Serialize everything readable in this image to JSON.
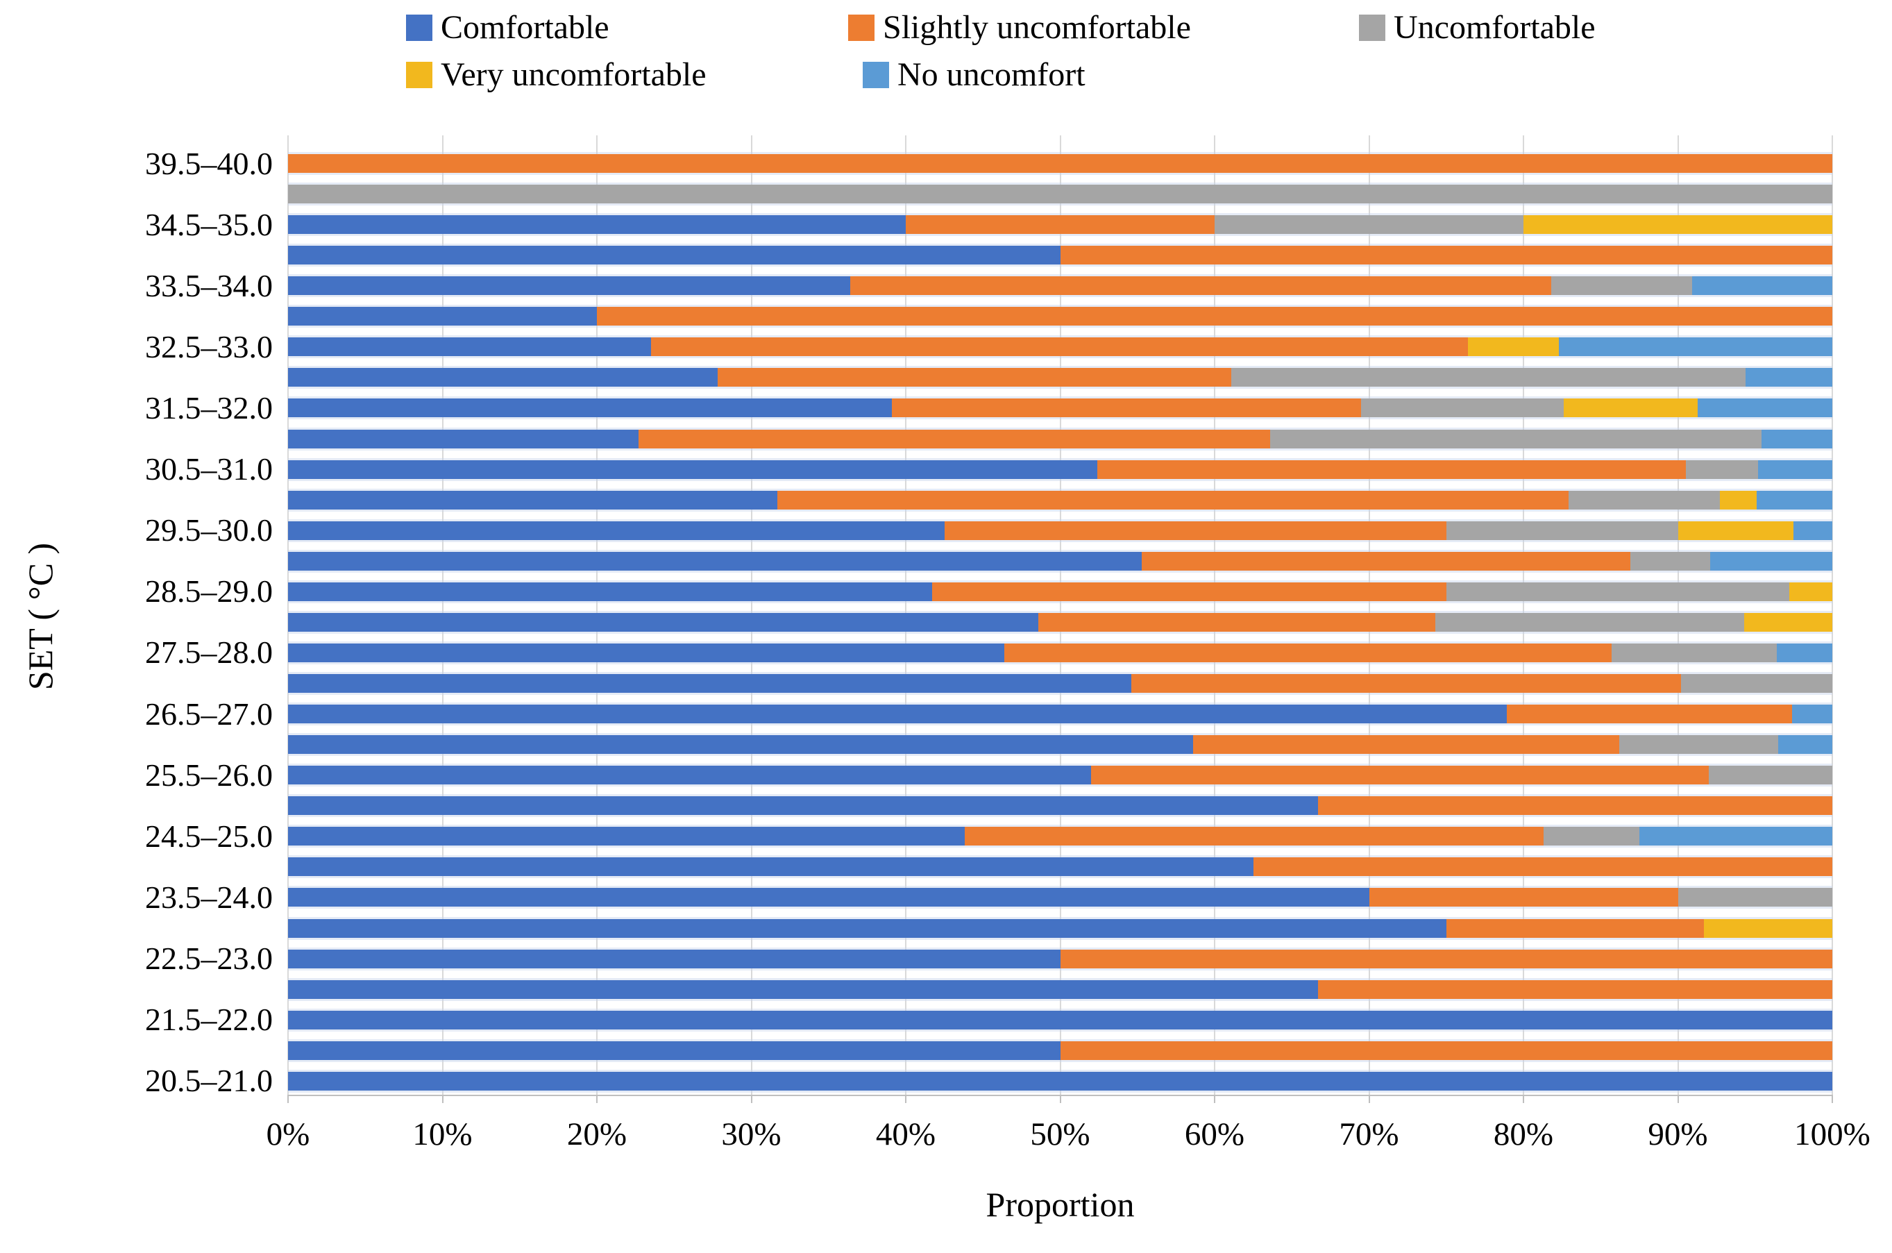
{
  "legend": {
    "items": [
      {
        "label": "Comfortable",
        "color": "#4472C4"
      },
      {
        "label": "Slightly uncomfortable",
        "color": "#ED7D31"
      },
      {
        "label": "Uncomfortable",
        "color": "#A5A5A5"
      },
      {
        "label": "Very uncomfortable",
        "color": "#F2B81E"
      },
      {
        "label": "No uncomfort",
        "color": "#5B9BD5"
      }
    ]
  },
  "axes": {
    "xlabel": "Proportion",
    "ylabel": "SET ( °C )"
  },
  "chart_data": {
    "type": "bar",
    "stacked": true,
    "orientation": "horizontal",
    "xlabel": "Proportion",
    "ylabel": "SET ( °C )",
    "xlim": [
      0,
      100
    ],
    "grid": "vertical",
    "legend_position": "top",
    "x_ticks": [
      "0%",
      "10%",
      "20%",
      "30%",
      "40%",
      "50%",
      "60%",
      "70%",
      "80%",
      "90%",
      "100%"
    ],
    "series_names": [
      "Comfortable",
      "Slightly uncomfortable",
      "Uncomfortable",
      "Very uncomfortable",
      "No uncomfort"
    ],
    "series_colors": [
      "#4472C4",
      "#ED7D31",
      "#A5A5A5",
      "#F2B81E",
      "#5B9BD5"
    ],
    "note": "rows ordered top to bottom; unlabeled rows are intermediate 0.5 °C SET bins; values are percent of [Comfortable, Slightly uncomfortable, Uncomfortable, Very uncomfortable, No uncomfort]",
    "rows": [
      {
        "label": "39.5–40.0",
        "values": [
          0,
          100,
          0,
          0,
          0
        ]
      },
      {
        "label": "",
        "values": [
          0,
          0,
          100,
          0,
          0
        ]
      },
      {
        "label": "34.5–35.0",
        "values": [
          40,
          20,
          20,
          20,
          0
        ]
      },
      {
        "label": "",
        "values": [
          50,
          50,
          0,
          0,
          0
        ]
      },
      {
        "label": "33.5–34.0",
        "values": [
          36.4,
          45.4,
          9.1,
          0,
          9.1
        ]
      },
      {
        "label": "",
        "values": [
          20,
          80,
          0,
          0,
          0
        ]
      },
      {
        "label": "32.5–33.0",
        "values": [
          23.5,
          52.9,
          0,
          5.9,
          17.7
        ]
      },
      {
        "label": "",
        "values": [
          27.8,
          33.3,
          33.3,
          0,
          5.6
        ]
      },
      {
        "label": "31.5–32.0",
        "values": [
          39.1,
          30.4,
          13.1,
          8.7,
          8.7
        ]
      },
      {
        "label": "",
        "values": [
          22.7,
          40.9,
          31.8,
          0,
          4.6
        ]
      },
      {
        "label": "30.5–31.0",
        "values": [
          52.4,
          38.1,
          4.7,
          0,
          4.8
        ]
      },
      {
        "label": "",
        "values": [
          31.7,
          51.2,
          9.8,
          2.4,
          4.9
        ]
      },
      {
        "label": "29.5–30.0",
        "values": [
          42.5,
          32.5,
          15,
          7.5,
          2.5
        ]
      },
      {
        "label": "",
        "values": [
          55.3,
          31.6,
          5.2,
          0,
          7.9
        ]
      },
      {
        "label": "28.5–29.0",
        "values": [
          41.7,
          33.3,
          22.2,
          2.8,
          0
        ]
      },
      {
        "label": "",
        "values": [
          48.6,
          25.7,
          20,
          5.7,
          0
        ]
      },
      {
        "label": "27.5–28.0",
        "values": [
          46.4,
          39.3,
          10.7,
          0,
          3.6
        ]
      },
      {
        "label": "",
        "values": [
          54.6,
          35.6,
          9.8,
          0,
          0
        ]
      },
      {
        "label": "26.5–27.0",
        "values": [
          78.9,
          18.5,
          0,
          0,
          2.6
        ]
      },
      {
        "label": "",
        "values": [
          58.6,
          27.6,
          10.3,
          0,
          3.5
        ]
      },
      {
        "label": "25.5–26.0",
        "values": [
          52,
          40,
          8,
          0,
          0
        ]
      },
      {
        "label": "",
        "values": [
          66.7,
          33.3,
          0,
          0,
          0
        ]
      },
      {
        "label": "24.5–25.0",
        "values": [
          43.8,
          37.5,
          6.2,
          0,
          12.5
        ]
      },
      {
        "label": "",
        "values": [
          62.5,
          37.5,
          0,
          0,
          0
        ]
      },
      {
        "label": "23.5–24.0",
        "values": [
          70,
          20,
          10,
          0,
          0
        ]
      },
      {
        "label": "",
        "values": [
          75,
          16.7,
          0,
          8.3,
          0
        ]
      },
      {
        "label": "22.5–23.0",
        "values": [
          50,
          50,
          0,
          0,
          0
        ]
      },
      {
        "label": "",
        "values": [
          66.7,
          33.3,
          0,
          0,
          0
        ]
      },
      {
        "label": "21.5–22.0",
        "values": [
          100,
          0,
          0,
          0,
          0
        ]
      },
      {
        "label": "",
        "values": [
          50,
          50,
          0,
          0,
          0
        ]
      },
      {
        "label": "20.5–21.0",
        "values": [
          100,
          0,
          0,
          0,
          0
        ]
      }
    ]
  }
}
